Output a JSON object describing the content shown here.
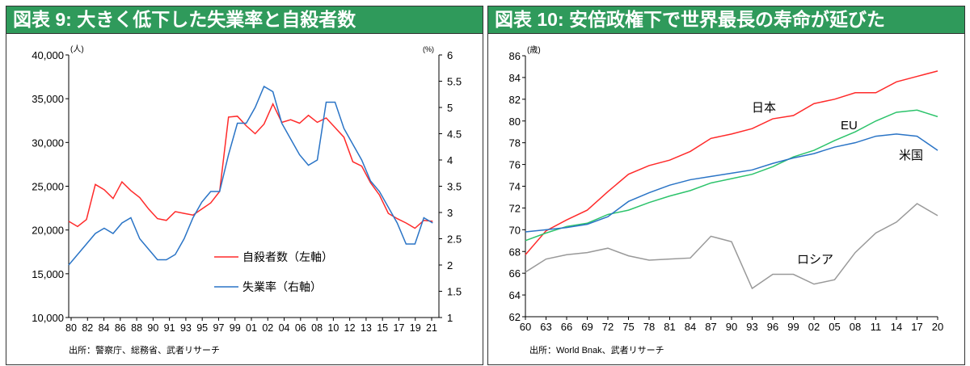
{
  "chart_data": [
    {
      "type": "line",
      "title": "図表 9: 大きく低下した失業率と自殺者数",
      "y_unit_left": "(人)",
      "y_unit_right": "(%)",
      "ylim_left": [
        10000,
        40000
      ],
      "ylim_right": [
        1,
        6
      ],
      "yticks_left": [
        "10,000",
        "15,000",
        "20,000",
        "25,000",
        "30,000",
        "35,000",
        "40,000"
      ],
      "yticks_right": [
        "1",
        "1.5",
        "2",
        "2.5",
        "3",
        "3.5",
        "4",
        "4.5",
        "5",
        "5.5",
        "6"
      ],
      "xticks": [
        "80",
        "82",
        "84",
        "86",
        "88",
        "90",
        "91",
        "93",
        "95",
        "97",
        "99",
        "01",
        "02",
        "04",
        "06",
        "08",
        "10",
        "12",
        "13",
        "15",
        "17",
        "19",
        "21"
      ],
      "x": [
        1980,
        1981,
        1982,
        1983,
        1984,
        1985,
        1986,
        1987,
        1988,
        1989,
        1990,
        1991,
        1992,
        1993,
        1994,
        1995,
        1996,
        1997,
        1998,
        1999,
        2000,
        2001,
        2002,
        2003,
        2004,
        2005,
        2006,
        2007,
        2008,
        2009,
        2010,
        2011,
        2012,
        2013,
        2014,
        2015,
        2016,
        2017,
        2018,
        2019,
        2020,
        2021
      ],
      "series": [
        {
          "name": "自殺者数（左軸）",
          "axis": "left",
          "color": "#ff2a2a",
          "values": [
            21000,
            20400,
            21200,
            25200,
            24600,
            23600,
            25500,
            24500,
            23700,
            22400,
            21300,
            21100,
            22100,
            21900,
            21700,
            22400,
            23100,
            24400,
            32900,
            33000,
            31900,
            31000,
            32100,
            34400,
            32300,
            32600,
            32200,
            33100,
            32300,
            32800,
            31700,
            30600,
            27800,
            27300,
            25400,
            24000,
            21900,
            21300,
            20800,
            20200,
            21100,
            21000
          ]
        },
        {
          "name": "失業率（右軸）",
          "axis": "right",
          "color": "#2a74c6",
          "values": [
            2.0,
            2.2,
            2.4,
            2.6,
            2.7,
            2.6,
            2.8,
            2.9,
            2.5,
            2.3,
            2.1,
            2.1,
            2.2,
            2.5,
            2.9,
            3.2,
            3.4,
            3.4,
            4.1,
            4.7,
            4.7,
            5.0,
            5.4,
            5.3,
            4.7,
            4.4,
            4.1,
            3.9,
            4.0,
            5.1,
            5.1,
            4.6,
            4.3,
            4.0,
            3.6,
            3.4,
            3.1,
            2.8,
            2.4,
            2.4,
            2.9,
            2.8
          ]
        }
      ],
      "source": "出所：警察庁、総務省、武者リサーチ"
    },
    {
      "type": "line",
      "title": "図表 10: 安倍政権下で世界最長の寿命が延びた",
      "y_unit": "(歳)",
      "ylim": [
        62,
        86
      ],
      "yticks": [
        "62",
        "64",
        "66",
        "68",
        "70",
        "72",
        "74",
        "76",
        "78",
        "80",
        "82",
        "84",
        "86"
      ],
      "xticks": [
        "60",
        "63",
        "66",
        "69",
        "72",
        "75",
        "78",
        "81",
        "84",
        "87",
        "90",
        "93",
        "96",
        "99",
        "02",
        "05",
        "08",
        "11",
        "14",
        "17",
        "20"
      ],
      "x": [
        1960,
        1963,
        1966,
        1969,
        1972,
        1975,
        1978,
        1981,
        1984,
        1987,
        1990,
        1993,
        1996,
        1999,
        2002,
        2005,
        2008,
        2011,
        2014,
        2017,
        2020
      ],
      "series": [
        {
          "name": "日本",
          "color": "#ff2a2a",
          "values": [
            67.7,
            69.9,
            70.9,
            71.8,
            73.5,
            75.1,
            75.9,
            76.4,
            77.2,
            78.4,
            78.8,
            79.3,
            80.2,
            80.5,
            81.6,
            82.0,
            82.6,
            82.6,
            83.6,
            84.1,
            84.6
          ]
        },
        {
          "name": "EU",
          "color": "#2cc36b",
          "values": [
            69.0,
            69.7,
            70.3,
            70.6,
            71.4,
            71.8,
            72.5,
            73.1,
            73.6,
            74.3,
            74.7,
            75.1,
            75.8,
            76.7,
            77.3,
            78.2,
            79.0,
            80.0,
            80.8,
            81.0,
            80.4
          ]
        },
        {
          "name": "米国",
          "color": "#2a74c6",
          "values": [
            69.8,
            70.0,
            70.2,
            70.5,
            71.2,
            72.6,
            73.4,
            74.1,
            74.6,
            74.9,
            75.2,
            75.5,
            76.1,
            76.6,
            77.0,
            77.6,
            78.0,
            78.6,
            78.8,
            78.6,
            77.3
          ]
        },
        {
          "name": "ロシア",
          "color": "#999999",
          "values": [
            66.1,
            67.3,
            67.7,
            67.9,
            68.3,
            67.6,
            67.2,
            67.3,
            67.4,
            69.4,
            68.9,
            64.6,
            65.9,
            65.9,
            65.0,
            65.4,
            67.9,
            69.7,
            70.7,
            72.4,
            71.3
          ]
        }
      ],
      "source": "出所：World Bnak、武者リサーチ"
    }
  ]
}
